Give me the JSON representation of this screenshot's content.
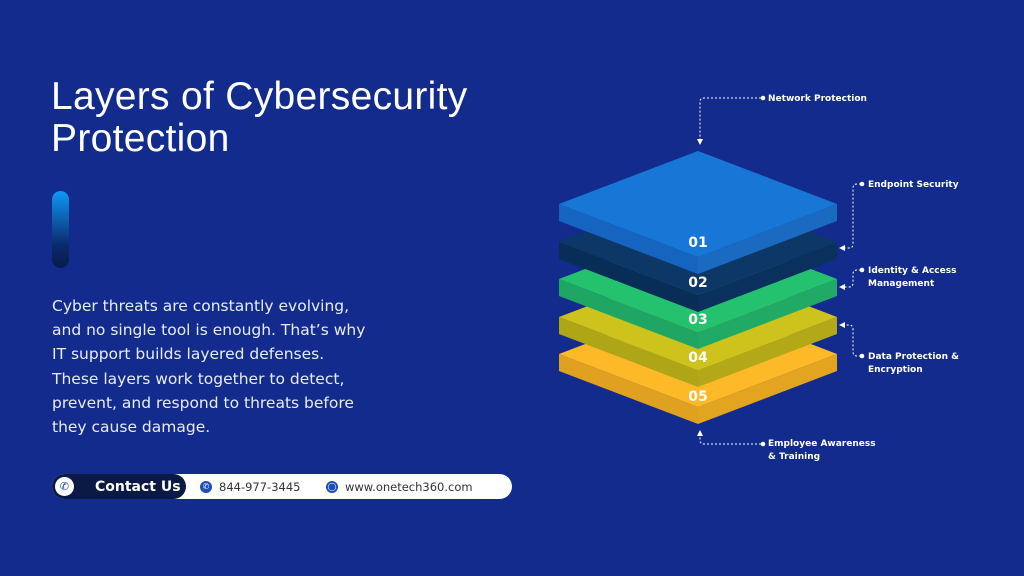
{
  "header": {
    "title_line1": "Layers of Cybersecurity",
    "title_line2": "Protection"
  },
  "description_lines": [
    "Cyber threats are constantly evolving,",
    "and no single tool is enough. That’s why",
    "IT support builds layered defenses.",
    "These layers work together to detect,",
    "prevent, and respond to threats before",
    "they cause damage."
  ],
  "contact": {
    "button_label": "Contact Us",
    "phone": "844-977-3445",
    "website": "www.onetech360.com",
    "phone_icon": "phone-icon",
    "web_icon": "globe-icon"
  },
  "layers": [
    {
      "number": "01",
      "label_lines": [
        "Network Protection"
      ],
      "top": "#1877d6",
      "left": "#1565c0",
      "right": "#1a6ac2"
    },
    {
      "number": "02",
      "label_lines": [
        "Endpoint Security"
      ],
      "top": "#0c3766",
      "left": "#082d57",
      "right": "#0a315e"
    },
    {
      "number": "03",
      "label_lines": [
        "Identity & Access",
        "Management"
      ],
      "top": "#24c26f",
      "left": "#1fa664",
      "right": "#21aa66"
    },
    {
      "number": "04",
      "label_lines": [
        "Data Protection &",
        "Encryption"
      ],
      "top": "#cdc31c",
      "left": "#aea617",
      "right": "#b3a918"
    },
    {
      "number": "05",
      "label_lines": [
        "Employee Awareness",
        "& Training"
      ],
      "top": "#fdb927",
      "left": "#dfa11f",
      "right": "#e3a420"
    }
  ],
  "colors": {
    "background": "#132b8c",
    "contact_dark": "#0b1a45"
  }
}
